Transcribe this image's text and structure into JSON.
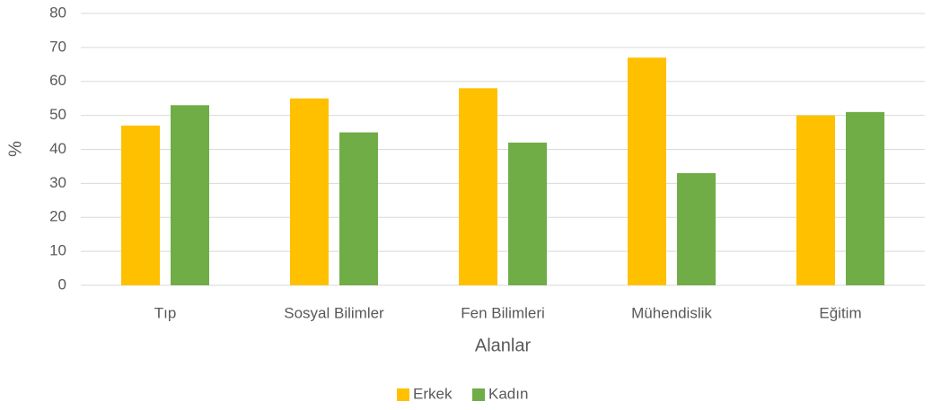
{
  "chart_data": {
    "type": "bar",
    "categories": [
      "Tıp",
      "Sosyal Bilimler",
      "Fen Bilimleri",
      "Mühendislik",
      "Eğitim"
    ],
    "series": [
      {
        "name": "Erkek",
        "color": "#ffc000",
        "values": [
          47,
          55,
          58,
          67,
          50
        ]
      },
      {
        "name": "Kadın",
        "color": "#70ad47",
        "values": [
          53,
          45,
          42,
          33,
          51
        ]
      }
    ],
    "x_label": "Alanlar",
    "y_label": "%",
    "ylim": [
      0,
      80
    ],
    "yticks": [
      0,
      10,
      20,
      30,
      40,
      50,
      60,
      70,
      80
    ],
    "grid": true,
    "legend": "bottom"
  }
}
